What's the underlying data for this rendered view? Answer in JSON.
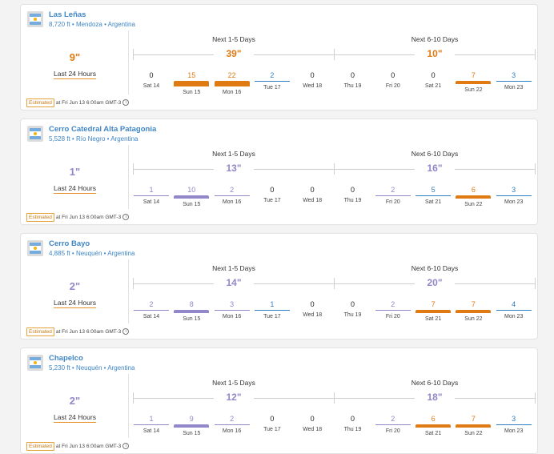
{
  "estimated_label": "Estimated",
  "last24_label": "Last 24 Hours",
  "ranges": [
    "Next 1-5 Days",
    "Next 6-10 Days"
  ],
  "days": [
    "Sat 14",
    "Sun 15",
    "Mon 16",
    "Tue 17",
    "Wed 18",
    "Thu 19",
    "Fri 20",
    "Sat 21",
    "Sun 22",
    "Mon 23"
  ],
  "colors": {
    "heavy": "#e07b14",
    "light": "#9287c9",
    "moderate": "#2f7fc0",
    "none": "#222222",
    "link": "#3f86c6"
  },
  "resorts": [
    {
      "name": "Las Leñas",
      "elevation": "8,720 ft",
      "province": "Mendoza",
      "country": "Argentina",
      "last24": "9\"",
      "last24_level": "heavy",
      "totals": [
        "39\"",
        "10\""
      ],
      "total_levels": [
        "heavy",
        "heavy"
      ],
      "days": [
        {
          "v": 0,
          "level": "none"
        },
        {
          "v": 15,
          "level": "heavy"
        },
        {
          "v": 22,
          "level": "heavy"
        },
        {
          "v": 2,
          "level": "moderate"
        },
        {
          "v": 0,
          "level": "none"
        },
        {
          "v": 0,
          "level": "none"
        },
        {
          "v": 0,
          "level": "none"
        },
        {
          "v": 0,
          "level": "none"
        },
        {
          "v": 7,
          "level": "heavy"
        },
        {
          "v": 3,
          "level": "moderate"
        }
      ],
      "timestamp": "at Fri Jun 13 6:00am GMT-3"
    },
    {
      "name": "Cerro Catedral Alta Patagonia",
      "elevation": "5,528 ft",
      "province": "Río Negro",
      "country": "Argentina",
      "last24": "1\"",
      "last24_level": "light",
      "totals": [
        "13\"",
        "16\""
      ],
      "total_levels": [
        "light",
        "light"
      ],
      "days": [
        {
          "v": 1,
          "level": "light"
        },
        {
          "v": 10,
          "level": "light"
        },
        {
          "v": 2,
          "level": "light"
        },
        {
          "v": 0,
          "level": "none"
        },
        {
          "v": 0,
          "level": "none"
        },
        {
          "v": 0,
          "level": "none"
        },
        {
          "v": 2,
          "level": "light"
        },
        {
          "v": 5,
          "level": "moderate"
        },
        {
          "v": 6,
          "level": "heavy"
        },
        {
          "v": 3,
          "level": "moderate"
        }
      ],
      "timestamp": "at Fri Jun 13 6:00am GMT-3"
    },
    {
      "name": "Cerro Bayo",
      "elevation": "4,885 ft",
      "province": "Neuquén",
      "country": "Argentina",
      "last24": "2\"",
      "last24_level": "light",
      "totals": [
        "14\"",
        "20\""
      ],
      "total_levels": [
        "light",
        "light"
      ],
      "days": [
        {
          "v": 2,
          "level": "light"
        },
        {
          "v": 8,
          "level": "light"
        },
        {
          "v": 3,
          "level": "light"
        },
        {
          "v": 1,
          "level": "moderate"
        },
        {
          "v": 0,
          "level": "none"
        },
        {
          "v": 0,
          "level": "none"
        },
        {
          "v": 2,
          "level": "light"
        },
        {
          "v": 7,
          "level": "heavy"
        },
        {
          "v": 7,
          "level": "heavy"
        },
        {
          "v": 4,
          "level": "moderate"
        }
      ],
      "timestamp": "at Fri Jun 13 6:00am GMT-3"
    },
    {
      "name": "Chapelco",
      "elevation": "5,230 ft",
      "province": "Neuquén",
      "country": "Argentina",
      "last24": "2\"",
      "last24_level": "light",
      "totals": [
        "12\"",
        "18\""
      ],
      "total_levels": [
        "light",
        "light"
      ],
      "days": [
        {
          "v": 1,
          "level": "light"
        },
        {
          "v": 9,
          "level": "light"
        },
        {
          "v": 2,
          "level": "light"
        },
        {
          "v": 0,
          "level": "none"
        },
        {
          "v": 0,
          "level": "none"
        },
        {
          "v": 0,
          "level": "none"
        },
        {
          "v": 2,
          "level": "light"
        },
        {
          "v": 6,
          "level": "heavy"
        },
        {
          "v": 7,
          "level": "heavy"
        },
        {
          "v": 3,
          "level": "moderate"
        }
      ],
      "timestamp": "at Fri Jun 13 6:00am GMT-3"
    }
  ]
}
